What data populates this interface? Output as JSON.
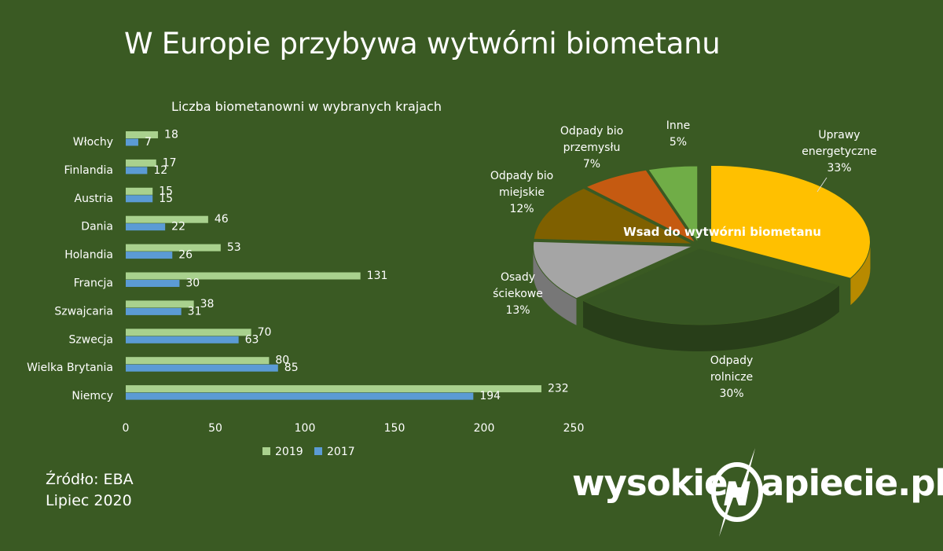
{
  "title": "W Europie przybywa wytwórni biometanu",
  "source": {
    "line1": "Źródło: EBA",
    "line2": "Lipiec 2020"
  },
  "logo": {
    "left_text": "wysokie",
    "right_text": "apiecie.pl",
    "mark_letter": "N"
  },
  "colors": {
    "background": "#3a5a23",
    "series_2019": "#a9d18e",
    "series_2017": "#5b9bd5"
  },
  "chart_data": [
    {
      "type": "bar",
      "orientation": "horizontal",
      "title": "Liczba biometanowni w wybranych krajach",
      "categories": [
        "Włochy",
        "Finlandia",
        "Austria",
        "Dania",
        "Holandia",
        "Francja",
        "Szwajcaria",
        "Szwecja",
        "Wielka Brytania",
        "Niemcy"
      ],
      "series": [
        {
          "name": "2019",
          "color": "#a9d18e",
          "values": [
            18,
            17,
            15,
            46,
            53,
            131,
            38,
            70,
            80,
            232
          ]
        },
        {
          "name": "2017",
          "color": "#5b9bd5",
          "values": [
            7,
            12,
            15,
            22,
            26,
            30,
            31,
            63,
            85,
            194
          ]
        }
      ],
      "xlim": [
        0,
        250
      ],
      "xticks": [
        "0",
        "50",
        "100",
        "150",
        "200",
        "250"
      ],
      "grid": false,
      "legend": "bottom"
    },
    {
      "type": "pie",
      "style": "3d-exploded",
      "title": "Wsad do wytwórni biometanu",
      "slices": [
        {
          "label": [
            "Uprawy",
            "energetyczne"
          ],
          "value": 33,
          "value_label": "33%",
          "color": "#ffc000"
        },
        {
          "label": [
            "Odpady",
            "rolnicze"
          ],
          "value": 30,
          "value_label": "30%",
          "color": "#375623"
        },
        {
          "label": [
            "Osady",
            "ściekowe"
          ],
          "value": 13,
          "value_label": "13%",
          "color": "#a5a5a5"
        },
        {
          "label": [
            "Odpady bio",
            "miejskie"
          ],
          "value": 12,
          "value_label": "12%",
          "color": "#7f6000"
        },
        {
          "label": [
            "Odpady bio",
            "przemysłu"
          ],
          "value": 7,
          "value_label": "7%",
          "color": "#c55a11"
        },
        {
          "label": [
            "Inne"
          ],
          "value": 5,
          "value_label": "5%",
          "color": "#70ad47"
        }
      ]
    }
  ]
}
